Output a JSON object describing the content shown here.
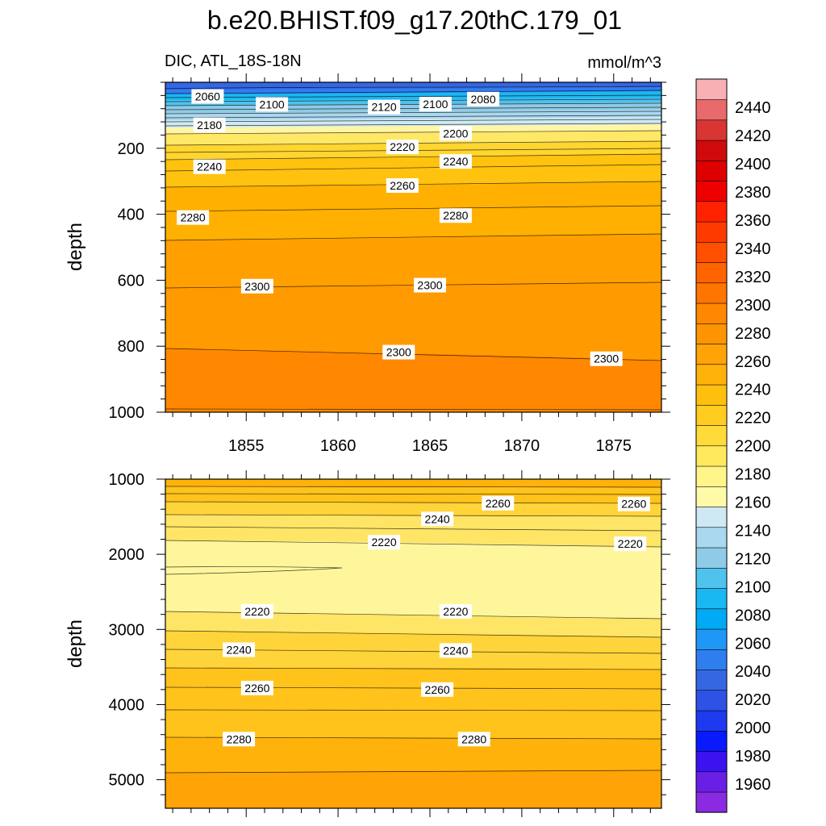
{
  "chart_data": {
    "type": "contour",
    "title": "b.e20.BHIST.f09_g17.20thC.179_01",
    "subtitle_left": "DIC, ATL_18S-18N",
    "units": "mmol/m^3",
    "colorbar": {
      "levels": [
        1960,
        1980,
        2000,
        2020,
        2040,
        2060,
        2080,
        2100,
        2120,
        2140,
        2160,
        2180,
        2200,
        2220,
        2240,
        2260,
        2280,
        2300,
        2320,
        2340,
        2360,
        2380,
        2400,
        2420,
        2440
      ],
      "colors": [
        "#8a2be2",
        "#6a1fe6",
        "#3b12f0",
        "#0a1aff",
        "#1e3af0",
        "#2f52e6",
        "#3567e3",
        "#2f7ef0",
        "#1f98f5",
        "#00aaf5",
        "#1ab8f2",
        "#4fc2ee",
        "#8fcbe6",
        "#a9d8ef",
        "#cfe9f4",
        "#fffaa8",
        "#fff58a",
        "#ffe95c",
        "#ffdb3a",
        "#ffcc1f",
        "#ffbf0f",
        "#ffb20a",
        "#ffa306",
        "#ff9402",
        "#ff8800",
        "#ff7500",
        "#ff6400",
        "#ff4f00",
        "#ff3a00",
        "#ff2200",
        "#ef0000",
        "#de0000",
        "#cf0a0a",
        "#d93535",
        "#e86a6a",
        "#f8b0b4"
      ]
    },
    "panels": [
      {
        "name": "upper",
        "xlabel": "",
        "ylabel": "depth",
        "xlim": [
          1850.6,
          1877.6
        ],
        "ylim": [
          1000,
          0
        ],
        "x_ticks": [
          1855,
          1860,
          1865,
          1870,
          1875
        ],
        "y_ticks": [
          200,
          400,
          600,
          800,
          1000
        ],
        "contour_labels": [
          {
            "text": "2060",
            "x": 1852.9,
            "y": 43
          },
          {
            "text": "2100",
            "x": 1856.4,
            "y": 67
          },
          {
            "text": "2120",
            "x": 1862.5,
            "y": 75
          },
          {
            "text": "2100",
            "x": 1865.3,
            "y": 66
          },
          {
            "text": "2080",
            "x": 1867.9,
            "y": 51
          },
          {
            "text": "2180",
            "x": 1853.0,
            "y": 129
          },
          {
            "text": "2200",
            "x": 1866.4,
            "y": 155
          },
          {
            "text": "2220",
            "x": 1863.5,
            "y": 196
          },
          {
            "text": "2240",
            "x": 1853.0,
            "y": 256
          },
          {
            "text": "2240",
            "x": 1866.4,
            "y": 240
          },
          {
            "text": "2260",
            "x": 1863.5,
            "y": 313
          },
          {
            "text": "2280",
            "x": 1852.1,
            "y": 410
          },
          {
            "text": "2280",
            "x": 1866.4,
            "y": 404
          },
          {
            "text": "2300",
            "x": 1855.6,
            "y": 618
          },
          {
            "text": "2300",
            "x": 1865.0,
            "y": 615
          },
          {
            "text": "2300",
            "x": 1863.3,
            "y": 818
          },
          {
            "text": "2300",
            "x": 1874.6,
            "y": 838
          }
        ]
      },
      {
        "name": "lower",
        "xlabel": "",
        "ylabel": "depth",
        "xlim": [
          1850.6,
          1877.6
        ],
        "ylim": [
          5380,
          1000
        ],
        "x_ticks": [
          1855,
          1860,
          1865,
          1870,
          1875
        ],
        "y_ticks": [
          1000,
          2000,
          3000,
          4000,
          5000
        ],
        "contour_labels": [
          {
            "text": "2260",
            "x": 1868.7,
            "y": 1320
          },
          {
            "text": "2260",
            "x": 1876.1,
            "y": 1330
          },
          {
            "text": "2240",
            "x": 1865.4,
            "y": 1530
          },
          {
            "text": "2220",
            "x": 1862.5,
            "y": 1840
          },
          {
            "text": "2220",
            "x": 1875.9,
            "y": 1860
          },
          {
            "text": "2220",
            "x": 1855.6,
            "y": 2760
          },
          {
            "text": "2220",
            "x": 1866.4,
            "y": 2760
          },
          {
            "text": "2240",
            "x": 1854.6,
            "y": 3270
          },
          {
            "text": "2240",
            "x": 1866.4,
            "y": 3280
          },
          {
            "text": "2260",
            "x": 1855.6,
            "y": 3780
          },
          {
            "text": "2260",
            "x": 1865.4,
            "y": 3800
          },
          {
            "text": "2280",
            "x": 1854.6,
            "y": 4460
          },
          {
            "text": "2280",
            "x": 1867.4,
            "y": 4460
          }
        ]
      }
    ]
  }
}
